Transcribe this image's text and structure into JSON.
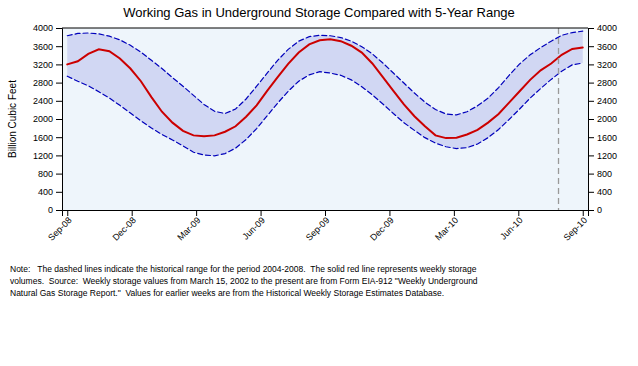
{
  "chart_data": {
    "type": "line",
    "title": "Working Gas in Underground Storage Compared with 5-Year Range",
    "ylabel": "Billion Cubic Feet",
    "notes": [
      "Note:   The dashed lines indicate the historical range for the period 2004-2008.  The solid red line represents weekly storage",
      "volumes.  Source:  Weekly storage values from March 15, 2002 to the present are from Form EIA-912 \"Weekly Underground",
      "Natural Gas Storage Report.\"  Values for earlier weeks are from the Historical Weekly Storage Estimates Database."
    ],
    "x": [
      0,
      1,
      2,
      3,
      4,
      5,
      6,
      7,
      8,
      9,
      10,
      11,
      12,
      13,
      14,
      15,
      16,
      17,
      18,
      19,
      20,
      21,
      22,
      23,
      24,
      25,
      26,
      27,
      28,
      29,
      30,
      31,
      32,
      33,
      34,
      35,
      36,
      37,
      38,
      39,
      40,
      41,
      42,
      43,
      44,
      45,
      46,
      47,
      48,
      49
    ],
    "xlim": [
      -0.5,
      49.5
    ],
    "xticks": [
      {
        "value": 0,
        "label": "Sep-08"
      },
      {
        "value": 6.125,
        "label": "Dec-08"
      },
      {
        "value": 12.25,
        "label": "Mar-09"
      },
      {
        "value": 18.375,
        "label": "Jun-09"
      },
      {
        "value": 24.5,
        "label": "Sep-09"
      },
      {
        "value": 30.625,
        "label": "Dec-09"
      },
      {
        "value": 36.75,
        "label": "Mar-10"
      },
      {
        "value": 42.875,
        "label": "Jun-10"
      },
      {
        "value": 49,
        "label": "Sep-10"
      }
    ],
    "ylim": [
      0,
      4000
    ],
    "yticks": [
      0,
      400,
      800,
      1200,
      1600,
      2000,
      2400,
      2800,
      3200,
      3600,
      4000
    ],
    "y2lim": [
      0,
      4000
    ],
    "y2ticks": [
      0,
      400,
      800,
      1200,
      1600,
      2000,
      2400,
      2800,
      3200,
      3600,
      4000
    ],
    "grid": false,
    "vline_x": 46.697,
    "series": [
      {
        "color": "#0000bb",
        "line_style": "dashed",
        "values": [
          3830,
          3880,
          3890,
          3870,
          3820,
          3740,
          3620,
          3470,
          3290,
          3110,
          2910,
          2720,
          2520,
          2320,
          2170,
          2120,
          2220,
          2440,
          2720,
          3010,
          3290,
          3530,
          3710,
          3810,
          3840,
          3830,
          3790,
          3710,
          3590,
          3430,
          3230,
          3010,
          2790,
          2570,
          2370,
          2210,
          2110,
          2090,
          2160,
          2290,
          2460,
          2690,
          2960,
          3210,
          3410,
          3570,
          3710,
          3840,
          3900,
          3930
        ]
      },
      {
        "color": "#0000bb",
        "line_style": "dashed",
        "values": [
          2940,
          2830,
          2730,
          2600,
          2460,
          2300,
          2130,
          1960,
          1800,
          1660,
          1540,
          1410,
          1270,
          1210,
          1190,
          1240,
          1360,
          1550,
          1790,
          2070,
          2350,
          2610,
          2830,
          2970,
          3040,
          3010,
          2960,
          2860,
          2710,
          2530,
          2330,
          2120,
          1920,
          1750,
          1590,
          1470,
          1390,
          1350,
          1370,
          1450,
          1590,
          1770,
          1990,
          2220,
          2460,
          2670,
          2870,
          3050,
          3190,
          3230
        ]
      },
      {
        "color": "#cc0000",
        "line_style": "solid",
        "values": [
          3200,
          3270,
          3430,
          3530,
          3490,
          3330,
          3110,
          2830,
          2480,
          2160,
          1920,
          1740,
          1640,
          1620,
          1640,
          1720,
          1840,
          2050,
          2300,
          2620,
          2920,
          3210,
          3460,
          3640,
          3730,
          3750,
          3710,
          3610,
          3460,
          3220,
          2920,
          2620,
          2320,
          2060,
          1840,
          1640,
          1580,
          1590,
          1660,
          1760,
          1920,
          2110,
          2360,
          2610,
          2860,
          3070,
          3220,
          3410,
          3540,
          3570
        ]
      }
    ]
  }
}
